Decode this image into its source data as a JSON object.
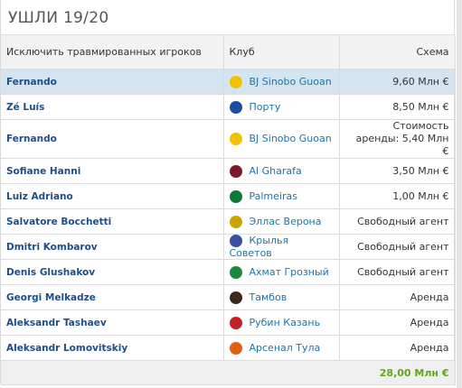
{
  "header": {
    "title": "УШЛИ 19/20"
  },
  "table": {
    "columns": [
      "Исключить травмированных игроков",
      "Клуб",
      "Схема"
    ],
    "rows": [
      [
        "Fernando",
        "BJ Sinobo Guoan",
        "9,60 Млн €"
      ],
      [
        "Zé Luís",
        "Порту",
        "8,50 Млн €"
      ],
      [
        "Fernando",
        "BJ Sinobo Guoan",
        "Стоимость аренды: 5,40 Млн €"
      ],
      [
        "Sofiane Hanni",
        "Al Gharafa",
        "3,50 Млн €"
      ],
      [
        "Luiz Adriano",
        "Palmeiras",
        "1,00 Млн €"
      ],
      [
        "Salvatore Bocchetti",
        "Эллас Верона",
        "Свободный агент"
      ],
      [
        "Dmitri Kombarov",
        "Крылья Советов",
        "Свободный агент"
      ],
      [
        "Denis Glushakov",
        "Ахмат Грозный",
        "Свободный агент"
      ],
      [
        "Georgi Melkadze",
        "Тамбов",
        "Аренда"
      ],
      [
        "Aleksandr Tashaev",
        "Рубин Казань",
        "Аренда"
      ],
      [
        "Aleksandr Lomovitskiy",
        "Арсенал Тула",
        "Аренда"
      ]
    ],
    "footer": {
      "total": "28,00 Млн €"
    }
  }
}
